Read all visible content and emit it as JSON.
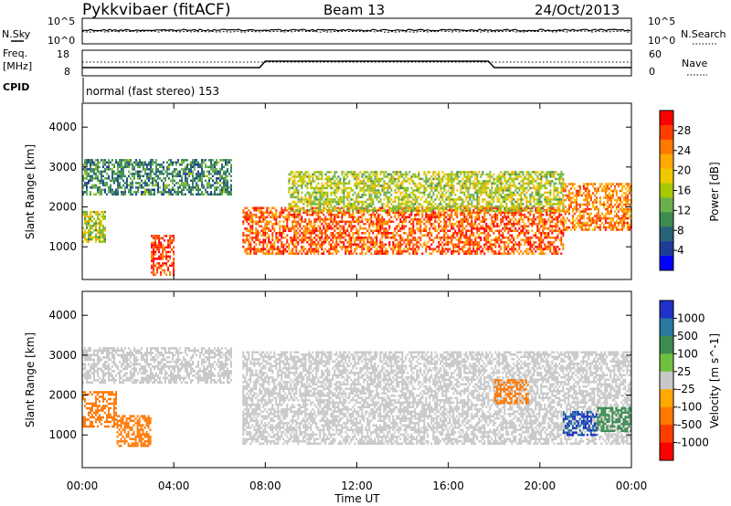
{
  "header": {
    "station": "Pykkvibaer (fitACF)",
    "beam": "Beam 13",
    "date": "24/Oct/2013"
  },
  "noise_panel": {
    "left_label": "N.Sky",
    "left_ticks": [
      "10^5",
      "10^0"
    ],
    "right_label": "N.Search",
    "right_ticks": [
      "10^5",
      "10^0"
    ]
  },
  "freq_panel": {
    "left_label_1": "Freq.",
    "left_label_2": "[MHz]",
    "left_ticks": [
      "18",
      "8"
    ],
    "right_label": "Nave",
    "right_ticks": [
      "60",
      "0"
    ],
    "cpid_label": "CPID",
    "cpid_text": "normal (fast stereo) 153"
  },
  "power_colorbar": {
    "label": "Power [dB]",
    "ticks": [
      "28",
      "24",
      "20",
      "16",
      "12",
      "8",
      "4"
    ],
    "colors": [
      "#ff0000",
      "#ff3c00",
      "#ff7800",
      "#ffa800",
      "#f0c800",
      "#a8c800",
      "#6ab04c",
      "#3c8c50",
      "#286478",
      "#1e3c96",
      "#0000ff"
    ]
  },
  "velocity_colorbar": {
    "label": "Velocity [m s^-1]",
    "ticks": [
      "1000",
      "500",
      "100",
      "25",
      "-25",
      "-100",
      "-500",
      "-1000"
    ],
    "colors": [
      "#2030c8",
      "#2878a0",
      "#3c8c50",
      "#70c040",
      "#c8c8c8",
      "#ffa800",
      "#ff7800",
      "#ff3c00",
      "#ff0000"
    ]
  },
  "chart_data": [
    {
      "type": "heatmap",
      "name_hint": "power",
      "ylabel": "Slant Range [km]",
      "xlabel": "Time UT",
      "x_ticks": [
        "00:00",
        "04:00",
        "08:00",
        "12:00",
        "16:00",
        "20:00",
        "00:00"
      ],
      "y_ticks": [
        1000,
        2000,
        3000,
        4000
      ],
      "xlim_hours": [
        0,
        24
      ],
      "ylim_km": [
        180,
        4600
      ],
      "approx_bands": [
        {
          "start_h": 0,
          "end_h": 6.5,
          "range_lo_km": 2300,
          "range_hi_km": 3200,
          "power_db": 8
        },
        {
          "start_h": 0,
          "end_h": 1.0,
          "range_lo_km": 1100,
          "range_hi_km": 1900,
          "power_db": 14
        },
        {
          "start_h": 3.0,
          "end_h": 4.0,
          "range_lo_km": 300,
          "range_hi_km": 1300,
          "power_db": 26
        },
        {
          "start_h": 7.0,
          "end_h": 21.0,
          "range_lo_km": 800,
          "range_hi_km": 2000,
          "power_db": 24
        },
        {
          "start_h": 9.0,
          "end_h": 21.0,
          "range_lo_km": 1900,
          "range_hi_km": 2900,
          "power_db": 14
        },
        {
          "start_h": 21.0,
          "end_h": 24.0,
          "range_lo_km": 1400,
          "range_hi_km": 2600,
          "power_db": 22
        }
      ]
    },
    {
      "type": "heatmap",
      "name_hint": "velocity",
      "ylabel": "Slant Range [km]",
      "xlabel": "Time UT",
      "x_ticks": [
        "00:00",
        "04:00",
        "08:00",
        "12:00",
        "16:00",
        "20:00",
        "00:00"
      ],
      "y_ticks": [
        1000,
        2000,
        3000,
        4000
      ],
      "xlim_hours": [
        0,
        24
      ],
      "ylim_km": [
        180,
        4600
      ],
      "approx_bands": [
        {
          "start_h": 0,
          "end_h": 6.5,
          "range_lo_km": 2300,
          "range_hi_km": 3200,
          "velocity": 0
        },
        {
          "start_h": 0,
          "end_h": 1.5,
          "range_lo_km": 1200,
          "range_hi_km": 2100,
          "velocity": -150
        },
        {
          "start_h": 1.5,
          "end_h": 3.0,
          "range_lo_km": 700,
          "range_hi_km": 1500,
          "velocity": -150
        },
        {
          "start_h": 7.0,
          "end_h": 24.0,
          "range_lo_km": 800,
          "range_hi_km": 3100,
          "velocity": 0
        },
        {
          "start_h": 18.0,
          "end_h": 19.5,
          "range_lo_km": 1800,
          "range_hi_km": 2400,
          "velocity": -150
        },
        {
          "start_h": 21.0,
          "end_h": 22.5,
          "range_lo_km": 1000,
          "range_hi_km": 1600,
          "velocity": 700
        },
        {
          "start_h": 22.5,
          "end_h": 24.0,
          "range_lo_km": 1100,
          "range_hi_km": 1700,
          "velocity": 150
        }
      ]
    }
  ]
}
